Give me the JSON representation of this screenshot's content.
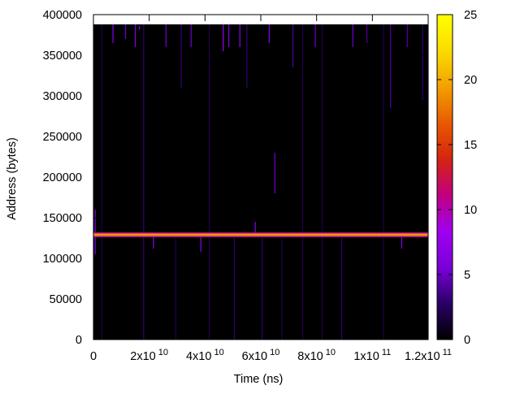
{
  "chart_data": {
    "type": "heatmap",
    "title": "",
    "xlabel": "Time (ns)",
    "ylabel": "Address (bytes)",
    "xlim": [
      0,
      120000000000
    ],
    "ylim": [
      0,
      400000
    ],
    "data_extent": {
      "x_max": 120000000000,
      "y_max": 388000
    },
    "x_ticks": [
      {
        "value": 0,
        "mantissa": "0",
        "exponent": ""
      },
      {
        "value": 20000000000,
        "mantissa": "2x10",
        "exponent": "10"
      },
      {
        "value": 40000000000,
        "mantissa": "4x10",
        "exponent": "10"
      },
      {
        "value": 60000000000,
        "mantissa": "6x10",
        "exponent": "10"
      },
      {
        "value": 80000000000,
        "mantissa": "8x10",
        "exponent": "10"
      },
      {
        "value": 100000000000,
        "mantissa": "1x10",
        "exponent": "11"
      },
      {
        "value": 120000000000,
        "mantissa": "1.2x10",
        "exponent": "11"
      }
    ],
    "y_ticks": [
      {
        "value": 0,
        "label": "0"
      },
      {
        "value": 50000,
        "label": "50000"
      },
      {
        "value": 100000,
        "label": "100000"
      },
      {
        "value": 150000,
        "label": "150000"
      },
      {
        "value": 200000,
        "label": "200000"
      },
      {
        "value": 250000,
        "label": "250000"
      },
      {
        "value": 300000,
        "label": "300000"
      },
      {
        "value": 350000,
        "label": "350000"
      },
      {
        "value": 400000,
        "label": "400000"
      }
    ],
    "colorbar": {
      "range": [
        0,
        25
      ],
      "ticks": [
        {
          "value": 0,
          "label": "0"
        },
        {
          "value": 5,
          "label": "5"
        },
        {
          "value": 10,
          "label": "10"
        },
        {
          "value": 15,
          "label": "15"
        },
        {
          "value": 20,
          "label": "20"
        },
        {
          "value": 25,
          "label": "25"
        }
      ],
      "palette": [
        "#000000",
        "#2a0066",
        "#7a00d8",
        "#a000f0",
        "#c00080",
        "#d52410",
        "#e85a00",
        "#f3a000",
        "#fbdc00",
        "#ffff00"
      ]
    },
    "background_value": 0,
    "hot_band": {
      "y": 129000,
      "value": 19,
      "x_range": [
        0,
        120000000000
      ]
    },
    "streaks": [
      {
        "x": 600000000,
        "y_from": 105000,
        "y_to": 160000,
        "value": 6
      },
      {
        "x": 3000000000,
        "y_from": 0,
        "y_to": 388000,
        "value": 2
      },
      {
        "x": 7000000000,
        "y_from": 365000,
        "y_to": 388000,
        "value": 6
      },
      {
        "x": 11500000000,
        "y_from": 370000,
        "y_to": 388000,
        "value": 5
      },
      {
        "x": 15000000000,
        "y_from": 360000,
        "y_to": 388000,
        "value": 6
      },
      {
        "x": 16500000000,
        "y_from": 382000,
        "y_to": 386000,
        "value": 7
      },
      {
        "x": 18000000000,
        "y_from": 0,
        "y_to": 388000,
        "value": 3
      },
      {
        "x": 21500000000,
        "y_from": 112000,
        "y_to": 127000,
        "value": 6
      },
      {
        "x": 26000000000,
        "y_from": 360000,
        "y_to": 388000,
        "value": 5
      },
      {
        "x": 29500000000,
        "y_from": 0,
        "y_to": 125000,
        "value": 2
      },
      {
        "x": 31500000000,
        "y_from": 310000,
        "y_to": 388000,
        "value": 3
      },
      {
        "x": 35000000000,
        "y_from": 360000,
        "y_to": 388000,
        "value": 5
      },
      {
        "x": 38500000000,
        "y_from": 108000,
        "y_to": 127000,
        "value": 6
      },
      {
        "x": 41500000000,
        "y_from": 0,
        "y_to": 388000,
        "value": 2
      },
      {
        "x": 46500000000,
        "y_from": 355000,
        "y_to": 388000,
        "value": 7
      },
      {
        "x": 48500000000,
        "y_from": 360000,
        "y_to": 388000,
        "value": 6
      },
      {
        "x": 50500000000,
        "y_from": 0,
        "y_to": 125000,
        "value": 3
      },
      {
        "x": 52500000000,
        "y_from": 360000,
        "y_to": 388000,
        "value": 6
      },
      {
        "x": 55000000000,
        "y_from": 310000,
        "y_to": 388000,
        "value": 3
      },
      {
        "x": 58000000000,
        "y_from": 130000,
        "y_to": 145000,
        "value": 6
      },
      {
        "x": 60500000000,
        "y_from": 0,
        "y_to": 125000,
        "value": 3
      },
      {
        "x": 63000000000,
        "y_from": 365000,
        "y_to": 388000,
        "value": 6
      },
      {
        "x": 65000000000,
        "y_from": 180000,
        "y_to": 230000,
        "value": 5
      },
      {
        "x": 67500000000,
        "y_from": 0,
        "y_to": 125000,
        "value": 2
      },
      {
        "x": 71500000000,
        "y_from": 335000,
        "y_to": 388000,
        "value": 4
      },
      {
        "x": 75000000000,
        "y_from": 0,
        "y_to": 388000,
        "value": 2
      },
      {
        "x": 79500000000,
        "y_from": 360000,
        "y_to": 388000,
        "value": 5
      },
      {
        "x": 82000000000,
        "y_from": 0,
        "y_to": 388000,
        "value": 2
      },
      {
        "x": 89000000000,
        "y_from": 0,
        "y_to": 125000,
        "value": 3
      },
      {
        "x": 93000000000,
        "y_from": 360000,
        "y_to": 388000,
        "value": 5
      },
      {
        "x": 98000000000,
        "y_from": 365000,
        "y_to": 388000,
        "value": 4
      },
      {
        "x": 104000000000,
        "y_from": 0,
        "y_to": 388000,
        "value": 2
      },
      {
        "x": 106500000000,
        "y_from": 285000,
        "y_to": 388000,
        "value": 4
      },
      {
        "x": 110500000000,
        "y_from": 112000,
        "y_to": 127000,
        "value": 6
      },
      {
        "x": 112500000000,
        "y_from": 360000,
        "y_to": 388000,
        "value": 4
      },
      {
        "x": 118000000000,
        "y_from": 295000,
        "y_to": 388000,
        "value": 3
      }
    ],
    "grid": false,
    "legend": "colorbar-right"
  }
}
